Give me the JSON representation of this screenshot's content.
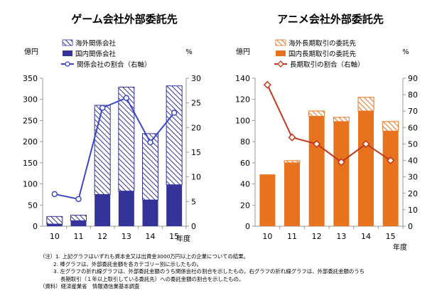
{
  "chart_data": [
    {
      "type": "bar+line",
      "title": "ゲーム会社外部委託先",
      "y_left_unit": "億円",
      "y_right_unit": "%",
      "x_label": "年度",
      "categories": [
        "10",
        "11",
        "12",
        "13",
        "14",
        "15"
      ],
      "ylim_left": [
        0,
        350
      ],
      "yticks_left": [
        "0",
        "50",
        "100",
        "150",
        "200",
        "250",
        "300",
        "350"
      ],
      "ylim_right": [
        0,
        30
      ],
      "yticks_right": [
        "0",
        "5",
        "10",
        "15",
        "20",
        "25",
        "30"
      ],
      "series": [
        {
          "name": "国内関係会社",
          "kind": "bar-bottom",
          "color": "#33339a",
          "values": [
            5,
            13,
            75,
            83,
            62,
            98
          ]
        },
        {
          "name": "海外関係会社",
          "kind": "bar-top-hatched",
          "color": "#33339a",
          "values": [
            18,
            13,
            211,
            246,
            157,
            234
          ]
        },
        {
          "name": "関係会社の割合（右軸）",
          "kind": "line",
          "axis": "right",
          "color": "#3b48c4",
          "values": [
            6.5,
            5.5,
            24,
            26,
            17,
            23
          ]
        }
      ]
    },
    {
      "type": "bar+line",
      "title": "アニメ会社外部委託先",
      "y_left_unit": "億円",
      "y_right_unit": "%",
      "x_label": "年度",
      "categories": [
        "10",
        "11",
        "12",
        "13",
        "14",
        "15"
      ],
      "ylim_left": [
        0,
        140
      ],
      "yticks_left": [
        "0",
        "20",
        "40",
        "60",
        "80",
        "100",
        "120",
        "140"
      ],
      "ylim_right": [
        0,
        90
      ],
      "yticks_right": [
        "0",
        "10",
        "20",
        "30",
        "40",
        "50",
        "60",
        "70",
        "80",
        "90"
      ],
      "series": [
        {
          "name": "国内長期取引の委託先",
          "kind": "bar-bottom",
          "color": "#e8731e",
          "values": [
            49,
            60,
            104,
            99,
            109,
            90
          ]
        },
        {
          "name": "海外長期取引の委託先",
          "kind": "bar-top-hatched",
          "color": "#e8731e",
          "values": [
            0,
            2,
            5,
            4,
            13,
            9
          ]
        },
        {
          "name": "長期取引の割合（右軸）",
          "kind": "line",
          "axis": "right",
          "color": "#c0391b",
          "values": [
            86,
            54,
            50,
            39,
            50,
            40
          ]
        }
      ]
    }
  ],
  "notes": [
    "（注）1. 上記グラフはいずれも資本金又は出資金3000万円以上の企業についての結果。",
    "2. 棒グラフは、外部委託金額を各カテゴリー別に示したもの。",
    "3. 左グラフの折れ線グラフは、外部委託金額のうち関係会社の割合を示したもの。右グラフの折れ線グラフは、外部委託金額のうち",
    "長期取引（１年以上取引している委託先）への委託金額の割合を示したもの。",
    "（資料）経済産業省　情報通信業基本調査"
  ]
}
